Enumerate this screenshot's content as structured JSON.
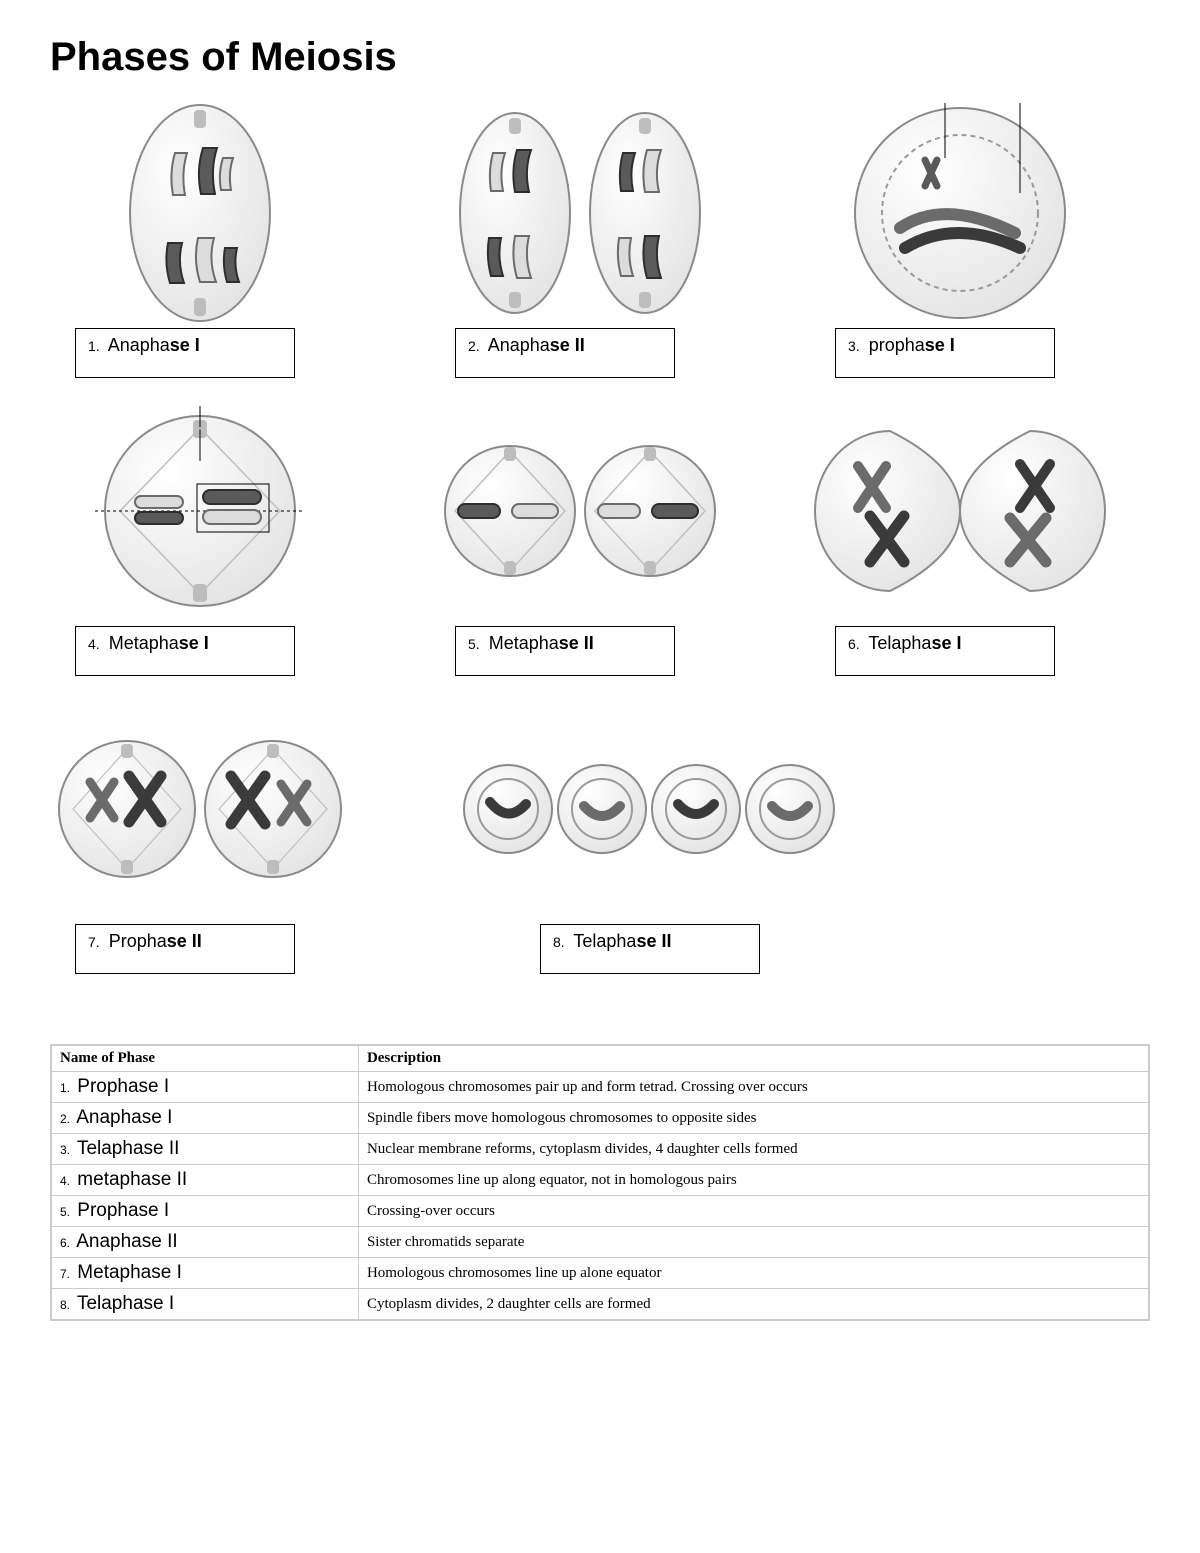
{
  "title": "Phases of Meiosis",
  "colors": {
    "page_bg": "#ffffff",
    "ink": "#000000",
    "cell_fill": "#f2f2f2",
    "cell_stroke": "#8a8a8a",
    "cell_inner": "#e8e8e8",
    "chrom_light_fill": "#dcdcdc",
    "chrom_light_stroke": "#6b6b6b",
    "chrom_dark_fill": "#5a5a5a",
    "chrom_dark_stroke": "#2d2d2d",
    "spindle": "#bfbfbf",
    "centriole": "#bdbdbd",
    "table_border": "#cccccc"
  },
  "phases": [
    {
      "num": "1.",
      "pre": "Anapha",
      "bold": "se I",
      "fig": "anaphase1"
    },
    {
      "num": "2.",
      "pre": "Anapha",
      "bold": "se II",
      "fig": "anaphase2"
    },
    {
      "num": "3.",
      "pre": "propha",
      "bold": "se I",
      "fig": "prophase1"
    },
    {
      "num": "4.",
      "pre": "Metapha",
      "bold": "se I",
      "fig": "metaphase1"
    },
    {
      "num": "5.",
      "pre": "Metapha",
      "bold": "se II",
      "fig": "metaphase2"
    },
    {
      "num": "6.",
      "pre": "Telapha",
      "bold": "se I",
      "fig": "telaphase1"
    },
    {
      "num": "7.",
      "pre": "Propha",
      "bold": "se II",
      "fig": "prophase2"
    },
    {
      "num": "8.",
      "pre": "Telapha",
      "bold": "se II",
      "fig": "telaphase2"
    }
  ],
  "table": {
    "columns": [
      "Name of Phase",
      "Description"
    ],
    "rows": [
      {
        "num": "1.",
        "name": "Prophase I",
        "desc": "Homologous chromosomes pair up and form tetrad.  Crossing over occurs"
      },
      {
        "num": "2.",
        "name": "Anaphase I",
        "desc": "Spindle fibers move homologous chromosomes to opposite sides"
      },
      {
        "num": "3.",
        "name": "Telaphase II",
        "desc": "Nuclear membrane reforms, cytoplasm divides, 4 daughter cells formed"
      },
      {
        "num": "4.",
        "name": "metaphase II",
        "desc": "Chromosomes line up along equator, not in homologous pairs"
      },
      {
        "num": "5.",
        "name": "Prophase I",
        "desc": "Crossing-over occurs"
      },
      {
        "num": "6.",
        "name": "Anaphase II",
        "desc": "Sister chromatids separate"
      },
      {
        "num": "7.",
        "name": "Metaphase I",
        "desc": "Homologous chromosomes line up alone equator"
      },
      {
        "num": "8.",
        "name": "Telaphase I",
        "desc": "Cytoplasm divides, 2 daughter cells are formed"
      }
    ]
  },
  "typography": {
    "title_fontsize": 40,
    "label_fontsize": 18,
    "table_header_fontsize": 15,
    "table_name_fontsize": 19,
    "table_desc_fontsize": 15
  }
}
